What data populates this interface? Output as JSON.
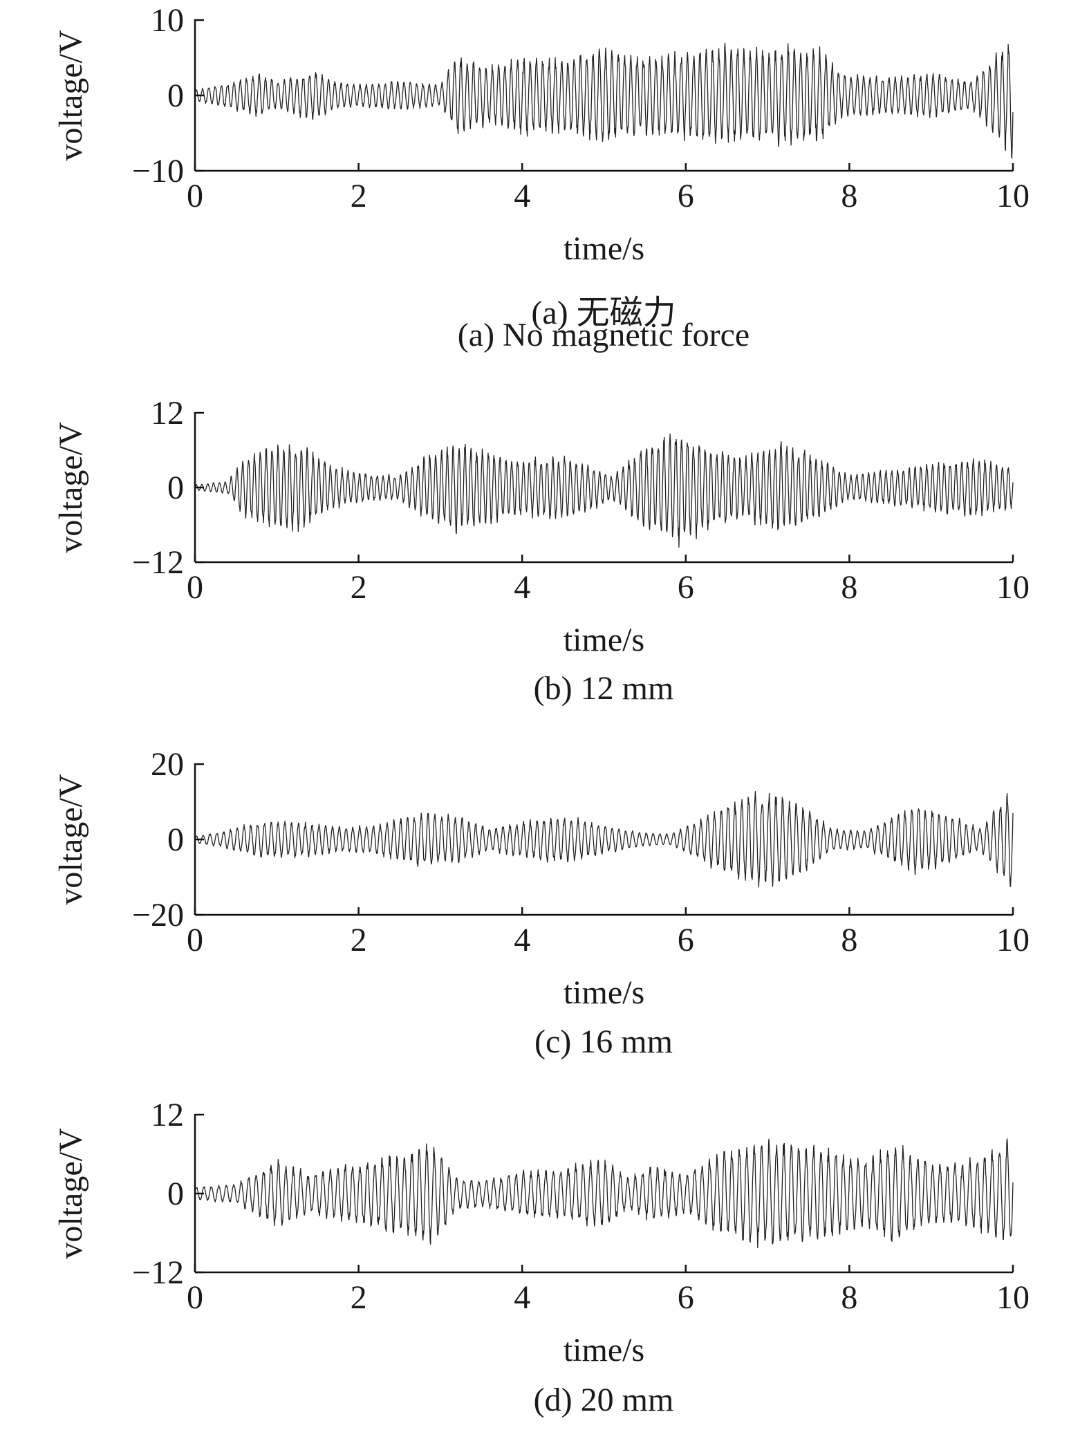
{
  "figure": {
    "panels": [
      {
        "id": "a",
        "caption_zh": "(a) 无磁力",
        "caption_en": "(a) No magnetic force"
      },
      {
        "id": "b",
        "caption_zh": "",
        "caption_en": "(b) 12 mm"
      },
      {
        "id": "c",
        "caption_zh": "",
        "caption_en": "(c) 16 mm"
      },
      {
        "id": "d",
        "caption_zh": "",
        "caption_en": "(d) 20 mm"
      }
    ]
  },
  "chart_data": [
    {
      "type": "line",
      "panel": "a",
      "xlabel": "time/s",
      "ylabel": "voltage/V",
      "xlim": [
        0,
        10
      ],
      "ylim": [
        -10,
        10
      ],
      "xticks": [
        0,
        2,
        4,
        6,
        8,
        10
      ],
      "yticks": [
        -10,
        0,
        10
      ],
      "grid": false,
      "signal": {
        "frequency_hz": 13,
        "envelope": {
          "t": [
            0,
            0.3,
            0.8,
            1.0,
            1.5,
            1.7,
            2.0,
            2.5,
            3.0,
            3.2,
            3.6,
            4.0,
            4.5,
            5.0,
            5.5,
            6.0,
            6.5,
            7.0,
            7.3,
            7.7,
            7.9,
            8.5,
            9.0,
            9.5,
            9.7,
            10.0
          ],
          "amplitude": [
            0.8,
            1.5,
            3.0,
            2.0,
            3.5,
            2.0,
            1.5,
            2.0,
            1.5,
            5.5,
            4.0,
            5.5,
            5.0,
            6.5,
            5.5,
            6.0,
            7.0,
            6.5,
            7.0,
            6.0,
            3.0,
            2.5,
            3.0,
            2.0,
            4.5,
            8.5
          ]
        }
      }
    },
    {
      "type": "line",
      "panel": "b",
      "xlabel": "time/s",
      "ylabel": "voltage/V",
      "xlim": [
        0,
        10
      ],
      "ylim": [
        -12,
        12
      ],
      "xticks": [
        0,
        2,
        4,
        6,
        8,
        10
      ],
      "yticks": [
        -12,
        0,
        12
      ],
      "grid": false,
      "signal": {
        "frequency_hz": 14,
        "envelope": {
          "t": [
            0,
            0.4,
            0.6,
            1.0,
            1.3,
            1.7,
            2.0,
            2.5,
            2.8,
            3.2,
            3.5,
            4.0,
            4.4,
            4.8,
            5.1,
            5.5,
            5.9,
            6.3,
            6.7,
            7.1,
            7.5,
            8.0,
            8.5,
            9.0,
            9.5,
            10.0
          ],
          "amplitude": [
            0.5,
            1.0,
            5.0,
            7.5,
            7.0,
            3.5,
            2.5,
            2.0,
            5.0,
            7.5,
            6.5,
            4.5,
            5.5,
            4.0,
            2.0,
            7.0,
            9.5,
            7.0,
            5.0,
            7.5,
            6.0,
            2.0,
            3.0,
            4.0,
            5.0,
            3.5
          ]
        }
      }
    },
    {
      "type": "line",
      "panel": "c",
      "xlabel": "time/s",
      "ylabel": "voltage/V",
      "xlim": [
        0,
        10
      ],
      "ylim": [
        -20,
        20
      ],
      "xticks": [
        0,
        2,
        4,
        6,
        8,
        10
      ],
      "yticks": [
        -20,
        0,
        20
      ],
      "grid": false,
      "signal": {
        "frequency_hz": 12,
        "envelope": {
          "t": [
            0,
            0.3,
            0.8,
            1.2,
            1.8,
            2.2,
            2.8,
            3.2,
            3.6,
            4.0,
            4.5,
            5.0,
            5.4,
            5.8,
            6.2,
            6.6,
            7.0,
            7.4,
            7.8,
            8.2,
            8.8,
            9.2,
            9.6,
            10.0
          ],
          "amplitude": [
            1.0,
            2.0,
            5.0,
            5.0,
            3.5,
            4.0,
            7.5,
            6.5,
            3.0,
            5.0,
            6.5,
            4.0,
            2.0,
            1.5,
            6.0,
            11.0,
            13.5,
            10.0,
            3.0,
            2.5,
            9.5,
            7.0,
            3.0,
            15.0
          ]
        }
      }
    },
    {
      "type": "line",
      "panel": "d",
      "xlabel": "time/s",
      "ylabel": "voltage/V",
      "xlim": [
        0,
        10
      ],
      "ylim": [
        -12,
        12
      ],
      "xticks": [
        0,
        2,
        4,
        6,
        8,
        10
      ],
      "yticks": [
        -12,
        0,
        12
      ],
      "grid": false,
      "signal": {
        "frequency_hz": 11,
        "envelope": {
          "t": [
            0,
            0.5,
            0.7,
            1.0,
            1.4,
            1.8,
            2.2,
            2.6,
            2.9,
            3.2,
            3.5,
            4.0,
            4.5,
            5.0,
            5.3,
            5.6,
            6.0,
            6.4,
            7.0,
            7.4,
            7.8,
            8.2,
            8.6,
            9.0,
            9.4,
            9.7,
            10.0
          ],
          "amplitude": [
            1.0,
            1.5,
            3.0,
            5.5,
            3.0,
            4.5,
            5.5,
            6.5,
            8.0,
            2.5,
            2.0,
            3.5,
            4.0,
            5.5,
            2.5,
            4.5,
            3.0,
            6.5,
            8.5,
            8.0,
            7.0,
            5.5,
            8.0,
            4.5,
            5.0,
            6.5,
            8.5
          ]
        }
      }
    }
  ]
}
